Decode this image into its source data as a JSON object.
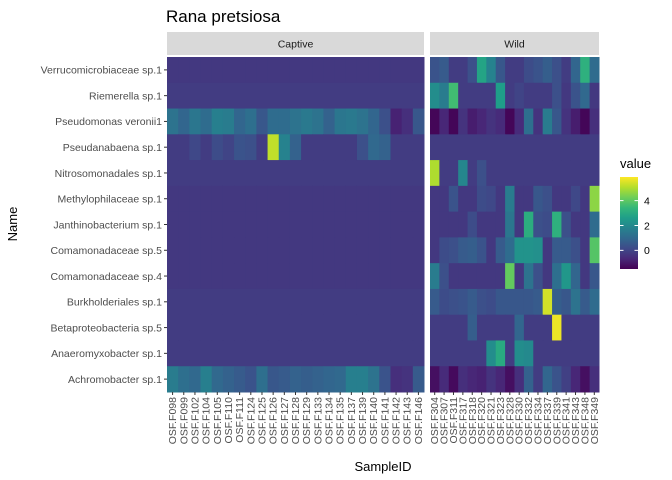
{
  "chart_data": {
    "type": "heatmap",
    "title": "Rana pretsiosa",
    "xlabel": "SampleID",
    "ylabel": "Name",
    "rows": [
      "Verrucomicrobiaceae sp.1",
      "Riemerella sp.1",
      "Pseudomonas veronii1",
      "Pseudanabaena sp.1",
      "Nitrosomonadales sp.1",
      "Methylophilaceae sp.1",
      "Janthinobacterium sp.1",
      "Comamonadaceae sp.5",
      "Comamonadaceae sp.4",
      "Burkholderiales sp.1",
      "Betaproteobacteria sp.5",
      "Anaeromyxobacter sp.1",
      "Achromobacter sp.1"
    ],
    "facets": [
      {
        "label": "Captive",
        "samples": [
          "OSF.F098",
          "OSF.F099",
          "OSF.F102",
          "OSF.F104",
          "OSF.F105",
          "OSF.F110",
          "OSF.F111",
          "OSF.F124",
          "OSF.F125",
          "OSF.F126",
          "OSF.F127",
          "OSF.F128",
          "OSF.F129",
          "OSF.F133",
          "OSF.F134",
          "OSF.F135",
          "OSF.F137",
          "OSF.F139",
          "OSF.F140",
          "OSF.F141",
          "OSF.F142",
          "OSF.F143",
          "OSF.F146"
        ],
        "values": [
          [
            -0.3,
            -0.3,
            -0.3,
            -0.3,
            -0.3,
            -0.3,
            -0.3,
            -0.3,
            -0.3,
            -0.3,
            -0.3,
            -0.3,
            -0.3,
            -0.3,
            -0.3,
            -0.3,
            -0.3,
            -0.3,
            -0.3,
            -0.3,
            -0.3,
            -0.3,
            -0.3
          ],
          [
            -0.2,
            -0.2,
            -0.2,
            -0.2,
            -0.2,
            -0.2,
            -0.2,
            -0.2,
            -0.2,
            -0.2,
            -0.2,
            -0.2,
            -0.2,
            -0.2,
            -0.2,
            -0.2,
            -0.2,
            -0.2,
            -0.2,
            -0.2,
            -0.2,
            -0.2,
            -0.2
          ],
          [
            1.3,
            0.9,
            1.4,
            1.1,
            1.7,
            1.6,
            0.9,
            1.2,
            0.5,
            1.1,
            1.1,
            1.3,
            1.5,
            1.3,
            0.8,
            1.4,
            1.5,
            1.3,
            0.9,
            0.3,
            -0.8,
            -0.5,
            0.5
          ],
          [
            -0.2,
            -0.2,
            0.1,
            -0.2,
            0.2,
            0.0,
            0.4,
            0.3,
            -0.2,
            5.2,
            1.8,
            0.8,
            -0.2,
            -0.2,
            -0.2,
            -0.2,
            -0.2,
            0.3,
            1.0,
            0.8,
            -0.2,
            -0.2,
            -0.2
          ],
          [
            -0.2,
            -0.2,
            -0.2,
            -0.2,
            -0.2,
            -0.2,
            -0.2,
            -0.2,
            -0.2,
            -0.2,
            -0.2,
            -0.2,
            -0.2,
            -0.2,
            -0.2,
            -0.2,
            -0.2,
            -0.2,
            -0.2,
            -0.2,
            -0.2,
            -0.2,
            -0.2
          ],
          [
            -0.3,
            -0.3,
            -0.3,
            -0.3,
            -0.3,
            -0.3,
            -0.3,
            -0.3,
            -0.3,
            -0.3,
            -0.3,
            -0.3,
            -0.3,
            -0.3,
            -0.3,
            -0.3,
            -0.3,
            -0.3,
            -0.3,
            -0.3,
            -0.3,
            -0.3,
            -0.3
          ],
          [
            -0.3,
            -0.3,
            -0.3,
            -0.3,
            -0.3,
            -0.3,
            -0.3,
            -0.3,
            -0.3,
            -0.3,
            -0.3,
            -0.3,
            -0.3,
            -0.3,
            -0.3,
            -0.3,
            -0.3,
            -0.3,
            -0.3,
            -0.3,
            -0.3,
            -0.3,
            -0.3
          ],
          [
            -0.3,
            -0.3,
            -0.3,
            -0.3,
            -0.3,
            -0.3,
            -0.3,
            -0.3,
            -0.3,
            -0.3,
            -0.3,
            -0.3,
            -0.3,
            -0.3,
            -0.3,
            -0.3,
            -0.3,
            -0.3,
            -0.3,
            -0.3,
            -0.3,
            -0.3,
            -0.3
          ],
          [
            -0.3,
            -0.3,
            -0.3,
            -0.3,
            -0.3,
            -0.3,
            -0.3,
            -0.3,
            -0.3,
            -0.3,
            -0.3,
            -0.3,
            -0.3,
            -0.3,
            -0.3,
            -0.3,
            -0.3,
            -0.3,
            -0.3,
            -0.3,
            -0.3,
            -0.3,
            -0.3
          ],
          [
            -0.2,
            -0.2,
            -0.2,
            -0.2,
            -0.2,
            -0.2,
            -0.2,
            -0.2,
            -0.2,
            -0.2,
            -0.2,
            -0.2,
            -0.2,
            -0.2,
            -0.2,
            -0.2,
            -0.2,
            -0.2,
            -0.2,
            -0.2,
            -0.2,
            -0.2,
            -0.2
          ],
          [
            -0.2,
            -0.2,
            -0.2,
            -0.2,
            -0.2,
            -0.2,
            -0.2,
            -0.2,
            -0.2,
            -0.2,
            -0.2,
            -0.2,
            -0.2,
            -0.2,
            -0.2,
            -0.2,
            -0.2,
            -0.2,
            -0.2,
            -0.2,
            -0.2,
            -0.2,
            -0.2
          ],
          [
            -0.2,
            -0.2,
            -0.2,
            -0.2,
            -0.2,
            -0.2,
            -0.2,
            -0.2,
            -0.2,
            -0.2,
            -0.2,
            -0.2,
            -0.2,
            -0.2,
            -0.2,
            -0.2,
            -0.2,
            -0.2,
            -0.2,
            -0.2,
            -0.2,
            -0.2,
            -0.2
          ],
          [
            1.6,
            1.2,
            1.0,
            1.7,
            1.0,
            0.8,
            0.6,
            0.4,
            1.2,
            0.5,
            0.6,
            0.8,
            0.7,
            0.8,
            0.9,
            1.0,
            1.7,
            1.7,
            1.3,
            0.4,
            -0.5,
            -0.4,
            0.6
          ]
        ]
      },
      {
        "label": "Wild",
        "samples": [
          "OSF.F304",
          "OSF.F307",
          "OSF.F311",
          "OSF.F317",
          "OSF.F318",
          "OSF.F320",
          "OSF.F321",
          "OSF.F323",
          "OSF.F328",
          "OSF.F330",
          "OSF.F332",
          "OSF.F334",
          "OSF.F337",
          "OSF.F339",
          "OSF.F341",
          "OSF.F343",
          "OSF.F348",
          "OSF.F349"
        ],
        "values": [
          [
            0.4,
            0.6,
            -0.2,
            -0.2,
            0.3,
            2.8,
            1.8,
            0.5,
            -0.2,
            -0.2,
            0.2,
            0.4,
            0.7,
            0.3,
            -0.2,
            0.9,
            3.2,
            1.1
          ],
          [
            2.1,
            1.6,
            3.6,
            -0.2,
            -0.2,
            -0.2,
            -0.2,
            2.6,
            -0.2,
            0.0,
            -0.2,
            -0.2,
            -0.2,
            0.3,
            -0.3,
            0.4,
            1.0,
            -0.3
          ],
          [
            -1.4,
            -0.7,
            -1.4,
            -0.4,
            -0.9,
            -0.7,
            -0.4,
            -0.6,
            -1.4,
            -0.6,
            1.2,
            -0.4,
            1.6,
            0.5,
            -0.4,
            -0.9,
            -1.4,
            -0.5
          ],
          [
            -0.2,
            -0.2,
            -0.2,
            -0.2,
            -0.2,
            -0.2,
            -0.2,
            -0.2,
            -0.2,
            -0.2,
            -0.2,
            -0.2,
            -0.2,
            -0.2,
            -0.2,
            -0.2,
            -0.2,
            -0.2
          ],
          [
            5.0,
            -0.2,
            -0.2,
            1.9,
            -0.2,
            0.3,
            -0.2,
            -0.2,
            -0.2,
            -0.2,
            -0.2,
            -0.2,
            -0.2,
            -0.2,
            -0.2,
            -0.2,
            -0.2,
            -0.2
          ],
          [
            -0.3,
            -0.3,
            0.4,
            -0.3,
            -0.3,
            0.2,
            0.1,
            -0.3,
            1.6,
            -0.3,
            -0.3,
            0.5,
            0.3,
            -0.3,
            -0.3,
            0.1,
            -0.3,
            4.6
          ],
          [
            -0.3,
            -0.3,
            -0.3,
            -0.3,
            0.2,
            -0.3,
            -0.3,
            -0.3,
            1.4,
            -0.3,
            3.1,
            0.3,
            0.2,
            3.2,
            0.3,
            -0.3,
            -0.3,
            1.1
          ],
          [
            -0.3,
            0.2,
            0.3,
            0.6,
            0.7,
            0.4,
            -0.3,
            0.6,
            1.1,
            2.3,
            2.3,
            2.2,
            -0.3,
            0.6,
            0.6,
            0.3,
            -0.3,
            3.9
          ],
          [
            1.6,
            0.3,
            -0.3,
            -0.3,
            -0.3,
            -0.3,
            -0.3,
            -0.3,
            4.1,
            -0.3,
            1.3,
            0.3,
            -0.3,
            1.2,
            2.4,
            0.9,
            -0.3,
            0.5
          ],
          [
            0.6,
            0.2,
            0.3,
            0.4,
            0.6,
            0.3,
            0.2,
            0.5,
            0.5,
            0.5,
            0.5,
            0.6,
            5.4,
            0.7,
            0.5,
            1.3,
            0.6,
            1.1
          ],
          [
            -0.2,
            -0.2,
            -0.2,
            -0.2,
            0.7,
            -0.2,
            -0.2,
            -0.2,
            -0.2,
            0.9,
            -0.2,
            -0.2,
            -0.2,
            5.7,
            -0.2,
            -0.2,
            -0.2,
            -0.2
          ],
          [
            -0.2,
            -0.2,
            -0.2,
            -0.2,
            -0.2,
            -0.2,
            2.1,
            3.0,
            -0.2,
            2.1,
            2.0,
            -0.2,
            -0.2,
            -0.2,
            -0.2,
            -0.2,
            -0.2,
            -0.2
          ],
          [
            -1.2,
            -0.6,
            -1.3,
            -0.5,
            -0.7,
            -0.8,
            -0.4,
            -0.7,
            -1.2,
            -0.5,
            0.8,
            -0.2,
            0.9,
            0.4,
            -0.1,
            -0.7,
            -1.2,
            -0.5
          ]
        ]
      }
    ],
    "legend": {
      "title": "value",
      "ticks": [
        4,
        2,
        0
      ],
      "range": [
        -1.5,
        5.9
      ],
      "position": "right"
    },
    "colormap": "viridis"
  }
}
